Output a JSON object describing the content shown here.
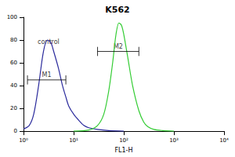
{
  "chart_data": {
    "type": "line",
    "title": "K562",
    "xlabel": "FL1-H",
    "log": "x",
    "xlim": [
      1,
      10000
    ],
    "xticks": [
      {
        "value": 1,
        "label": "10⁰"
      },
      {
        "value": 10,
        "label": "10¹"
      },
      {
        "value": 100,
        "label": "10²"
      },
      {
        "value": 1000,
        "label": "10³"
      },
      {
        "value": 10000,
        "label": "10⁴"
      }
    ],
    "ylim": [
      0,
      100
    ],
    "yticks": [
      0,
      20,
      40,
      60,
      80,
      100
    ],
    "series": [
      {
        "color": "#2a2a9c",
        "x": [
          1,
          1.3,
          1.6,
          2,
          2.5,
          3,
          3.5,
          4,
          5,
          6,
          7,
          8,
          10,
          13,
          16,
          20,
          30,
          50,
          100
        ],
        "values": [
          2,
          5,
          15,
          40,
          70,
          80,
          78,
          70,
          55,
          40,
          30,
          22,
          15,
          9,
          5,
          3,
          1.5,
          0.5,
          0
        ]
      },
      {
        "color": "#33cc33",
        "x": [
          10,
          20,
          30,
          40,
          50,
          60,
          70,
          80,
          90,
          100,
          120,
          150,
          200,
          250,
          300,
          400,
          600,
          1000
        ],
        "values": [
          0,
          1,
          5,
          15,
          35,
          60,
          85,
          95,
          93,
          85,
          65,
          40,
          18,
          8,
          4,
          1.5,
          0.5,
          0
        ]
      }
    ],
    "gates": [
      {
        "label": "M1",
        "x": [
          1.2,
          7
        ],
        "y": 45
      },
      {
        "label": "M2",
        "x": [
          30,
          200
        ],
        "y": 70
      }
    ],
    "annotations": [
      {
        "text": "control",
        "x": 1.6,
        "y": 78
      }
    ]
  }
}
